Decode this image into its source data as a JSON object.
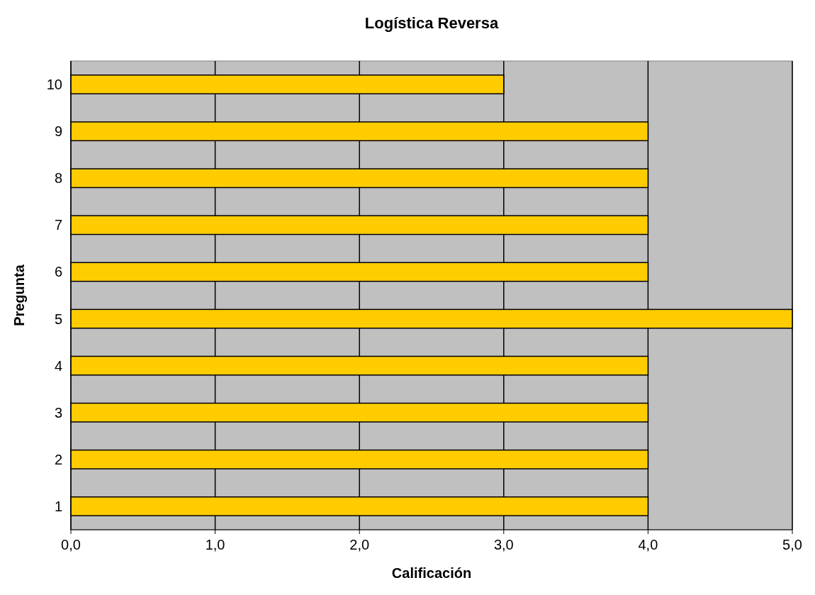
{
  "chart_data": {
    "type": "bar",
    "orientation": "horizontal",
    "title": "Logística Reversa",
    "xlabel": "Calificación",
    "ylabel": "Pregunta",
    "categories": [
      "10",
      "9",
      "8",
      "7",
      "6",
      "5",
      "4",
      "3",
      "2",
      "1"
    ],
    "values": [
      3,
      4,
      4,
      4,
      4,
      5,
      4,
      4,
      4,
      4
    ],
    "color": "#ffcc00",
    "xlim": [
      0,
      5
    ],
    "xticks": [
      {
        "value": 0,
        "label": "0,0"
      },
      {
        "value": 1,
        "label": "1,0"
      },
      {
        "value": 2,
        "label": "2,0"
      },
      {
        "value": 3,
        "label": "3,0"
      },
      {
        "value": 4,
        "label": "4,0"
      },
      {
        "value": 5,
        "label": "5,0"
      }
    ],
    "grid": "x"
  }
}
